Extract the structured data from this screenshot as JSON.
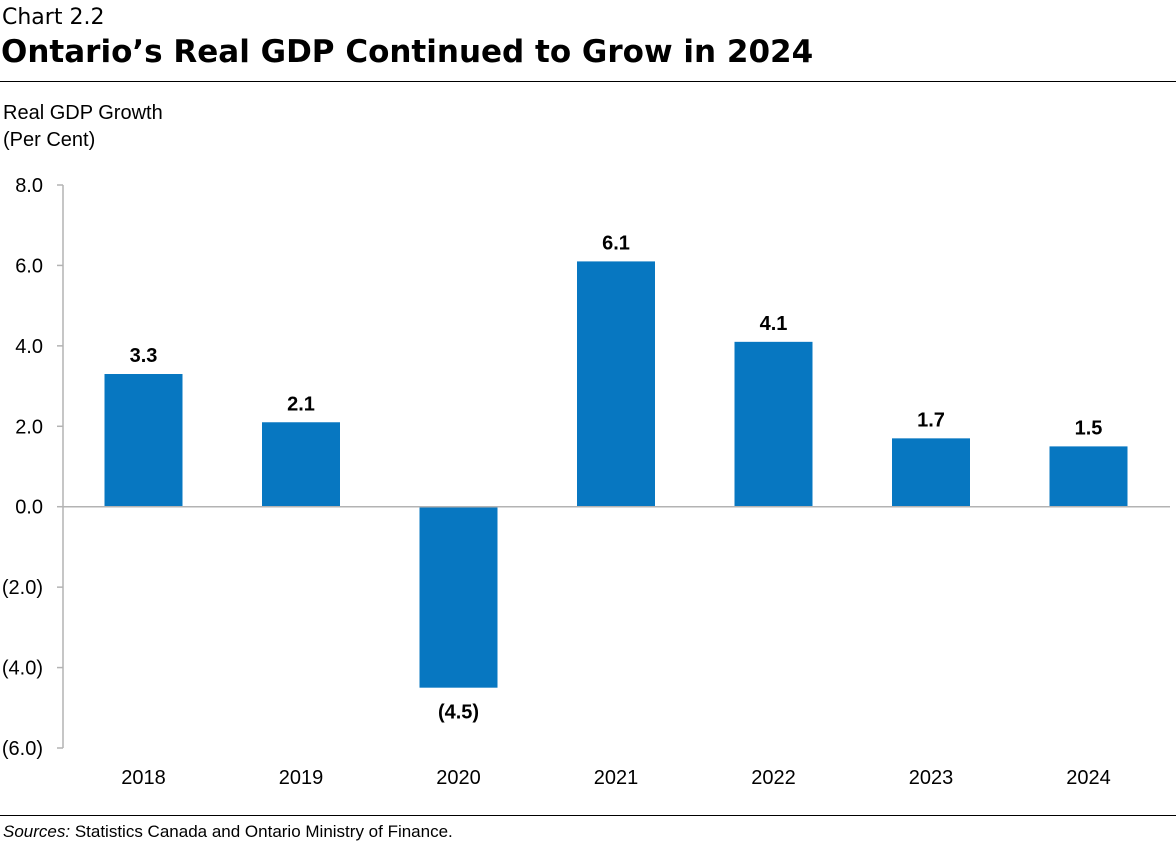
{
  "header": {
    "label": "Chart 2.2",
    "title": "Ontario’s Real GDP Continued to Grow in 2024"
  },
  "chart_data": {
    "type": "bar",
    "ylabel_line1": "Real GDP Growth",
    "ylabel_line2": "(Per Cent)",
    "categories": [
      "2018",
      "2019",
      "2020",
      "2021",
      "2022",
      "2023",
      "2024"
    ],
    "values": [
      3.3,
      2.1,
      -4.5,
      6.1,
      4.1,
      1.7,
      1.5
    ],
    "value_labels": [
      "3.3",
      "2.1",
      "(4.5)",
      "6.1",
      "4.1",
      "1.7",
      "1.5"
    ],
    "ylim": [
      -6,
      8
    ],
    "yticks": [
      8,
      6,
      4,
      2,
      0,
      -2,
      -4,
      -6
    ],
    "ytick_labels": [
      "8.0",
      "6.0",
      "4.0",
      "2.0",
      "0.0",
      "(2.0)",
      "(4.0)",
      "(6.0)"
    ],
    "bar_color": "#0777C1",
    "grid": false,
    "legend": "none"
  },
  "footer": {
    "sources_label": "Sources:",
    "sources_text": " Statistics Canada and Ontario Ministry of Finance."
  }
}
